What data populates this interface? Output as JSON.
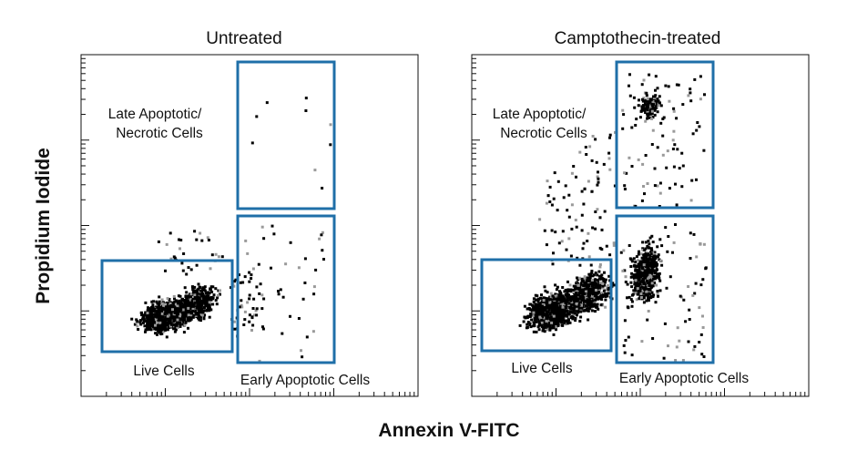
{
  "chart_data": [
    {
      "type": "scatter",
      "title": "Untreated",
      "xlabel": "Annexin V-FITC",
      "ylabel": "Propidium Iodide",
      "x_scale": "log",
      "y_scale": "log",
      "gates": [
        {
          "label": "Late Apoptotic/ Necrotic Cells",
          "lines": [
            "Late Apoptotic/",
            "Necrotic Cells"
          ]
        },
        {
          "label": "Early Apoptotic Cells",
          "lines": [
            "Early Apoptotic Cells"
          ]
        },
        {
          "label": "Live Cells",
          "lines": [
            "Live Cells"
          ]
        }
      ],
      "populations": [
        {
          "gate": "Live Cells",
          "relative_density": "very high"
        },
        {
          "gate": "Early Apoptotic Cells",
          "relative_density": "low"
        },
        {
          "gate": "Late Apoptotic/ Necrotic Cells",
          "relative_density": "very low"
        }
      ]
    },
    {
      "type": "scatter",
      "title": "Camptothecin-treated",
      "xlabel": "Annexin V-FITC",
      "ylabel": "Propidium Iodide",
      "x_scale": "log",
      "y_scale": "log",
      "gates": [
        {
          "label": "Late Apoptotic/ Necrotic Cells",
          "lines": [
            "Late Apoptotic/",
            "Necrotic Cells"
          ]
        },
        {
          "label": "Early Apoptotic Cells",
          "lines": [
            "Early Apoptotic Cells"
          ]
        },
        {
          "label": "Live Cells",
          "lines": [
            "Live Cells"
          ]
        }
      ],
      "populations": [
        {
          "gate": "Live Cells",
          "relative_density": "high"
        },
        {
          "gate": "Early Apoptotic Cells",
          "relative_density": "high"
        },
        {
          "gate": "Late Apoptotic/ Necrotic Cells",
          "relative_density": "moderate"
        }
      ]
    }
  ],
  "axis_titles": {
    "x": "Annexin V-FITC",
    "y": "Propidium Iodide"
  },
  "colors": {
    "gate": "#1f6fa8",
    "events": "#000000",
    "events_light": "#9a9a9a"
  }
}
